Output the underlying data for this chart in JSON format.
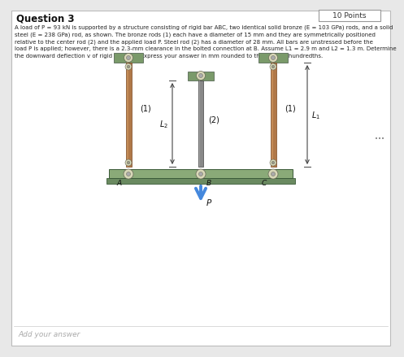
{
  "title": "Question 3",
  "points_label": "10 Points",
  "problem_lines": [
    "A load of P = 93 kN is supported by a structure consisting of rigid bar ABC, two identical solid bronze (E = 103 GPa) rods, and a solid",
    "steel (E = 238 GPa) rod, as shown. The bronze rods (1) each have a diameter of 15 mm and they are symmetrically positioned",
    "relative to the center rod (2) and the applied load P. Steel rod (2) has a diameter of 28 mm. All bars are unstressed before the",
    "load P is applied; however, there is a 2.3-mm clearance in the bolted connection at B. Assume L1 = 2.9 m and L2 = 1.3 m. Determine",
    "the downward deflection v of rigid bar ABC. Express your answer in mm rounded to the nearest hundredths."
  ],
  "add_answer_label": "Add your answer",
  "bg_color": "#e8e8e8",
  "panel_bg": "#ffffff",
  "diagram": {
    "wall_color": "#7a9a6a",
    "rod_bronze_color": "#b07848",
    "rod_steel_color": "#888888",
    "bolt_color": "#d8d8b8",
    "bolt_inner_color": "#aaaaaa",
    "bolt_ring_color": "#b8b898",
    "arrow_color": "#4488dd",
    "dim_line_color": "#444444",
    "plate_color": "#8aaa78",
    "base_plate_color": "#6a8a60"
  }
}
